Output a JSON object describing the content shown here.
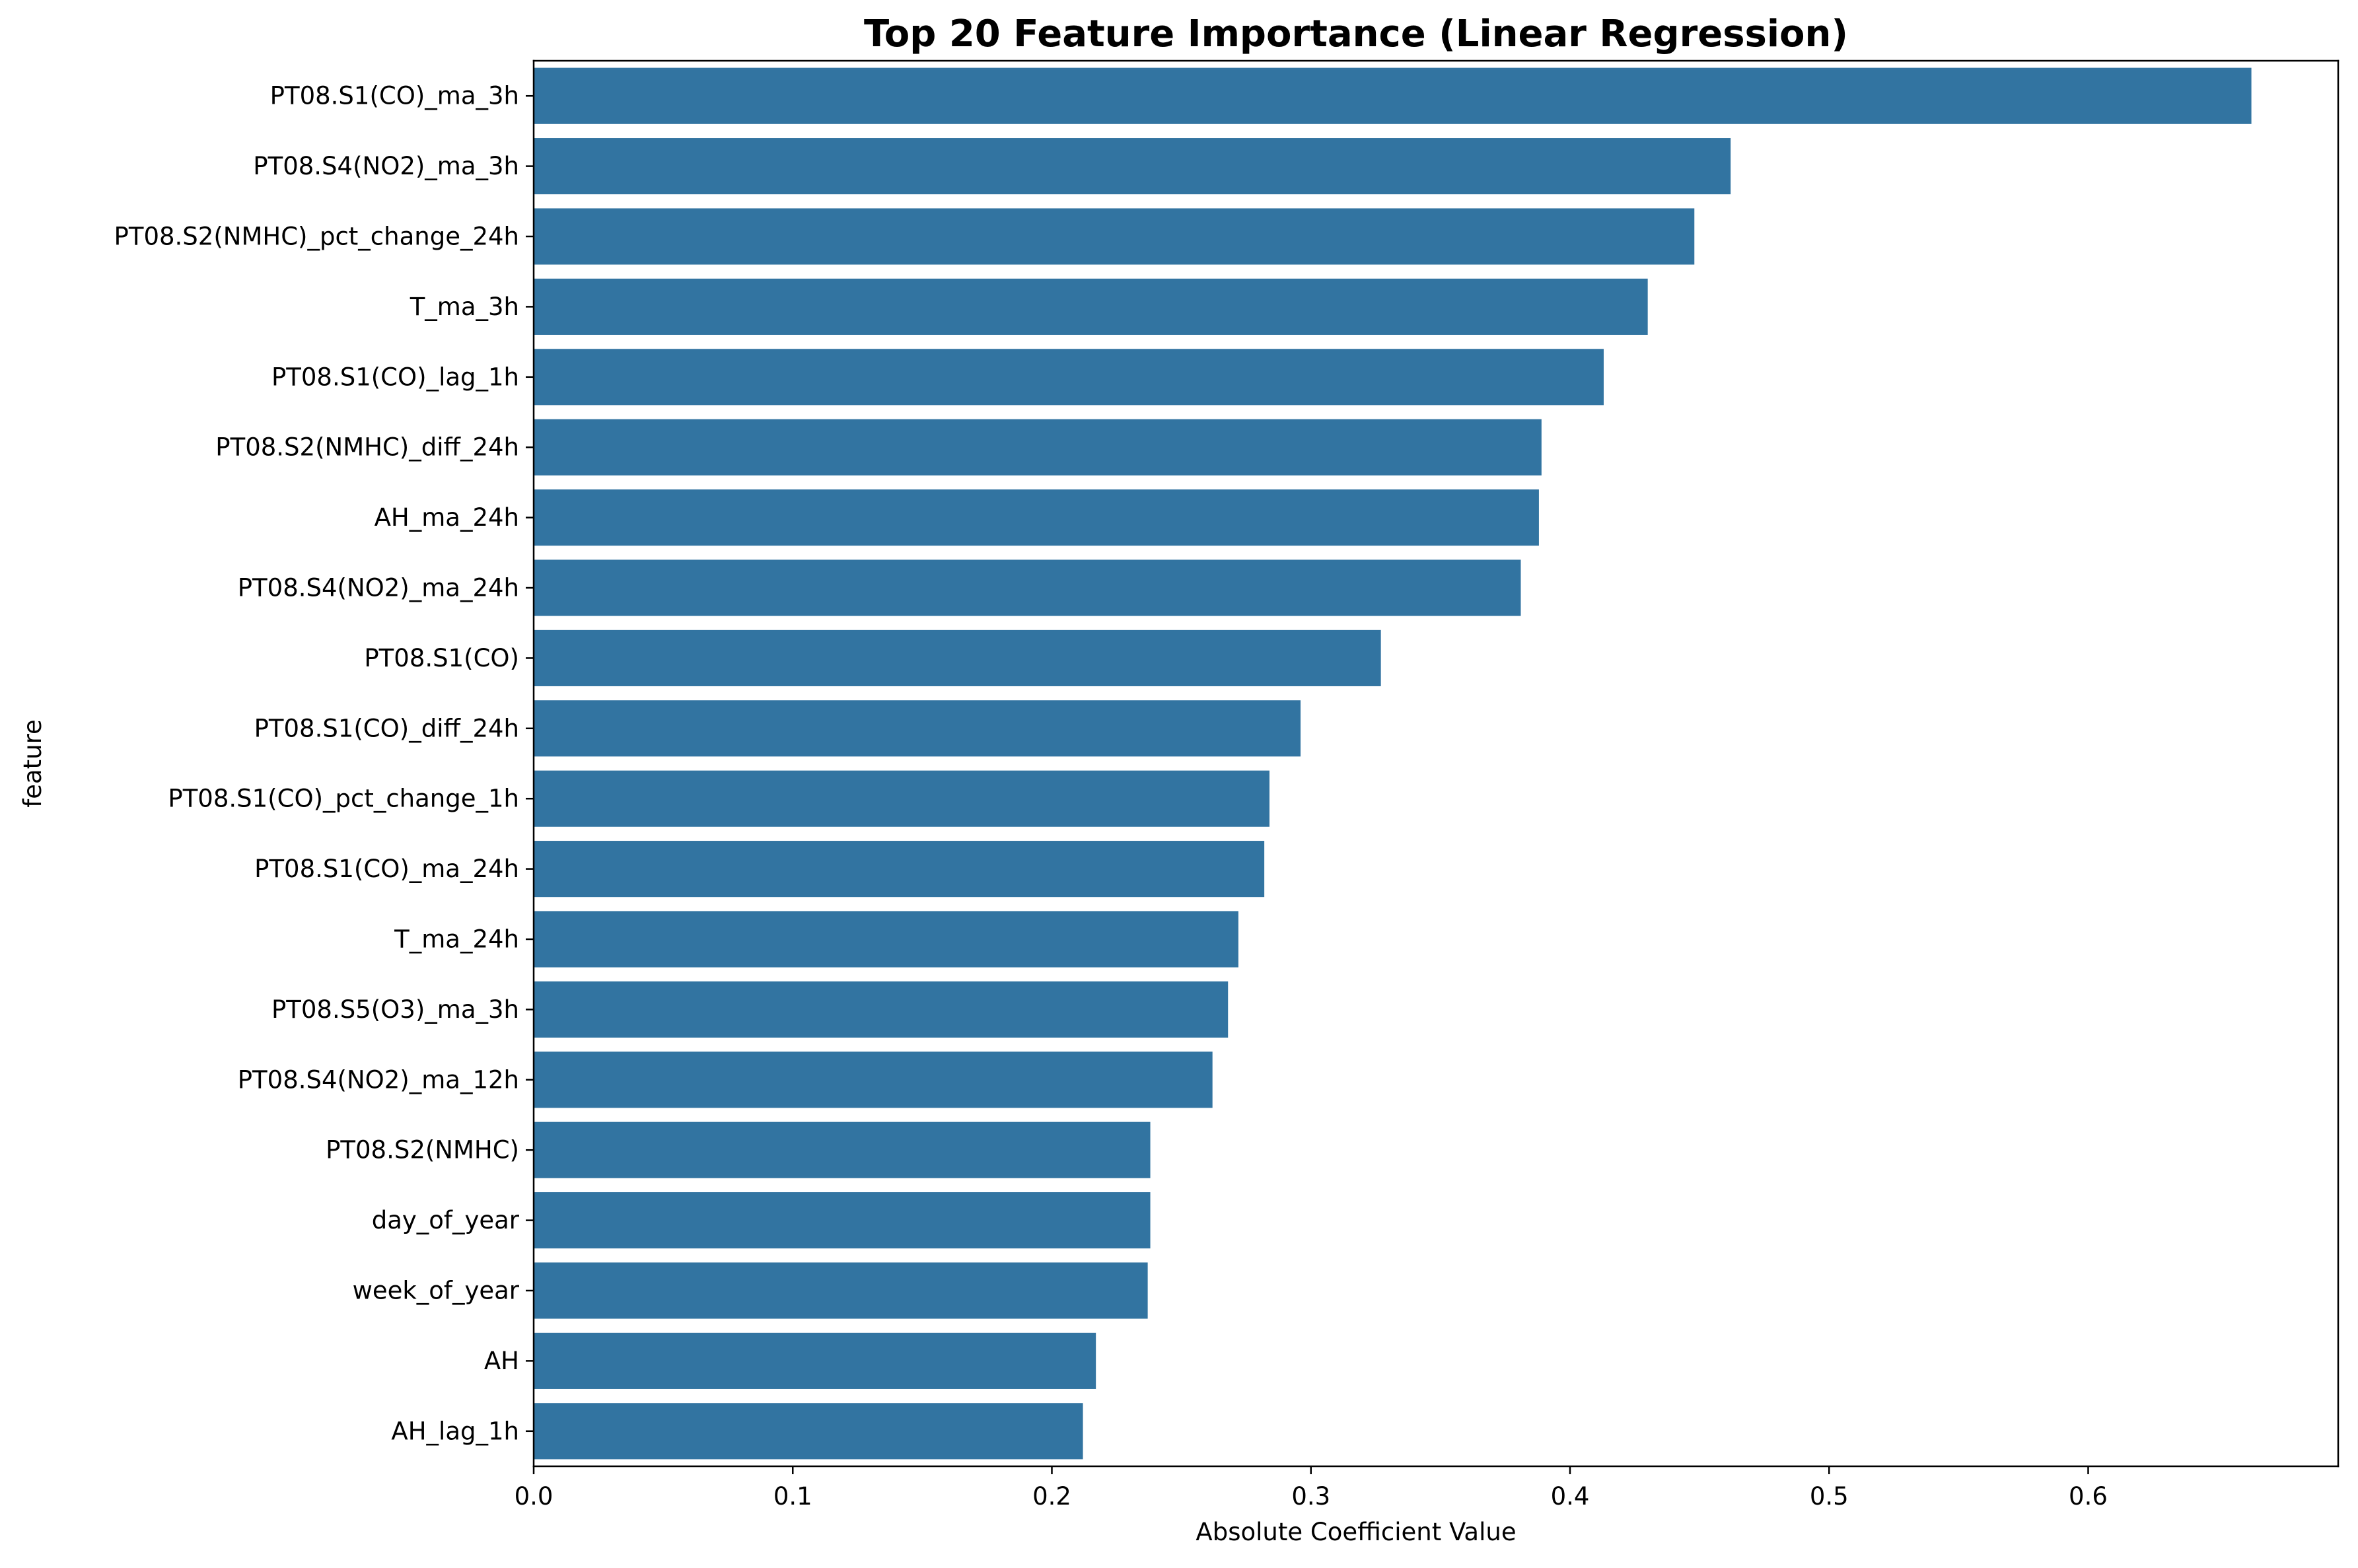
{
  "chart_data": {
    "type": "bar",
    "orientation": "horizontal",
    "title": "Top 20 Feature Importance (Linear Regression)",
    "xlabel": "Absolute Coefficient Value",
    "ylabel": "feature",
    "bar_color": "#3274a1",
    "xlim": [
      0,
      0.6965
    ],
    "x_ticks": [
      0.0,
      0.1,
      0.2,
      0.3,
      0.4,
      0.5,
      0.6
    ],
    "x_tick_labels": [
      "0.0",
      "0.1",
      "0.2",
      "0.3",
      "0.4",
      "0.5",
      "0.6"
    ],
    "grid": false,
    "categories": [
      "PT08.S1(CO)_ma_3h",
      "PT08.S4(NO2)_ma_3h",
      "PT08.S2(NMHC)_pct_change_24h",
      "T_ma_3h",
      "PT08.S1(CO)_lag_1h",
      "PT08.S2(NMHC)_diff_24h",
      "AH_ma_24h",
      "PT08.S4(NO2)_ma_24h",
      "PT08.S1(CO)",
      "PT08.S1(CO)_diff_24h",
      "PT08.S1(CO)_pct_change_1h",
      "PT08.S1(CO)_ma_24h",
      "T_ma_24h",
      "PT08.S5(O3)_ma_3h",
      "PT08.S4(NO2)_ma_12h",
      "PT08.S2(NMHC)",
      "day_of_year",
      "week_of_year",
      "AH",
      "AH_lag_1h"
    ],
    "values": [
      0.663,
      0.462,
      0.448,
      0.43,
      0.413,
      0.389,
      0.388,
      0.381,
      0.327,
      0.296,
      0.284,
      0.282,
      0.272,
      0.268,
      0.262,
      0.238,
      0.238,
      0.237,
      0.217,
      0.212
    ]
  }
}
